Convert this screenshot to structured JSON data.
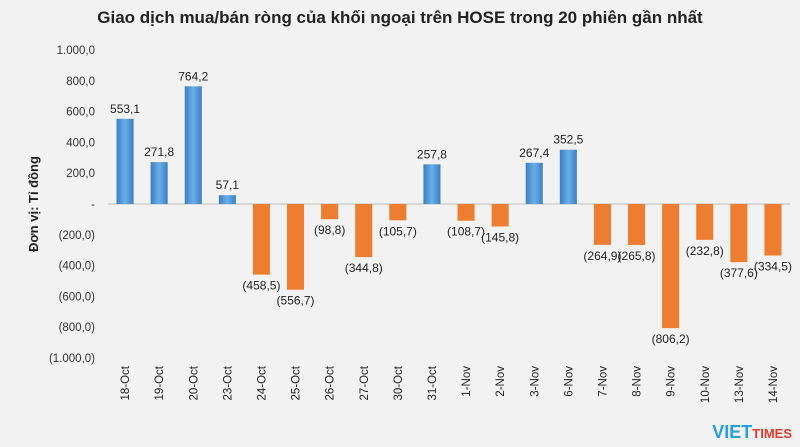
{
  "chart_data": {
    "type": "bar",
    "title": "Giao dịch mua/bán ròng của khối ngoại trên HOSE trong 20 phiên gần nhất",
    "ylabel": "Đơn vị: Tỉ đồng",
    "xlabel": "",
    "ylim": [
      -1000,
      1000
    ],
    "yticks": [
      1000,
      800,
      600,
      400,
      200,
      0,
      -200,
      -400,
      -600,
      -800,
      -1000
    ],
    "ytick_labels": [
      "1.000,0",
      "800,0",
      "600,0",
      "400,0",
      "200,0",
      "-",
      "(200,0)",
      "(400,0)",
      "(600,0)",
      "(800,0)",
      "(1.000,0)"
    ],
    "categories": [
      "18-Oct",
      "19-Oct",
      "20-Oct",
      "23-Oct",
      "24-Oct",
      "25-Oct",
      "26-Oct",
      "27-Oct",
      "30-Oct",
      "31-Oct",
      "1-Nov",
      "2-Nov",
      "3-Nov",
      "6-Nov",
      "7-Nov",
      "8-Nov",
      "9-Nov",
      "10-Nov",
      "13-Nov",
      "14-Nov"
    ],
    "values": [
      553.1,
      271.8,
      764.2,
      57.1,
      -458.5,
      -556.7,
      -98.8,
      -344.8,
      -105.7,
      257.8,
      -108.7,
      -145.8,
      267.4,
      352.5,
      -264.9,
      -265.8,
      -806.2,
      -232.8,
      -377.6,
      -334.5
    ],
    "value_labels": [
      "553,1",
      "271,8",
      "764,2",
      "57,1",
      "(458,5)",
      "(556,7)",
      "(98,8)",
      "(344,8)",
      "(105,7)",
      "257,8",
      "(108,7)",
      "(145,8)",
      "267,4",
      "352,5",
      "(264,9)",
      "(265,8)",
      "(806,2)",
      "(232,8)",
      "(377,6)",
      "(334,5)"
    ],
    "colors": {
      "positive": "#4a90d9",
      "negative": "#ed7d31"
    },
    "grid": false,
    "legend": "none"
  },
  "logo": {
    "part1": "VIET",
    "part2": "TIMES"
  }
}
